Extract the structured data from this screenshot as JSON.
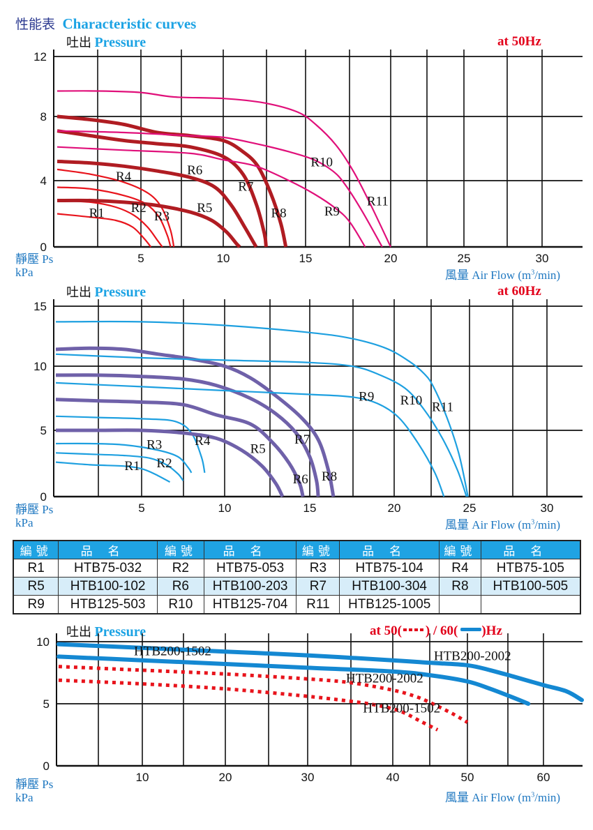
{
  "header": {
    "title_cn": "性能表",
    "title_en": "Characteristic curves"
  },
  "colors": {
    "title_cn": "#2b3990",
    "accent_blue": "#1ca3e4",
    "axis_label_blue": "#1f78c1",
    "freq_red": "#e2001a",
    "curve_red": "#e8141c",
    "curve_maroon": "#b01c22",
    "curve_magenta": "#e0107a",
    "curve_blue": "#1ea0e0",
    "curve_purple": "#6f61a9",
    "curve_blue_thick": "#1488d2",
    "curve_red_dotted": "#e8141c"
  },
  "labels": {
    "pressure_cn": "吐出",
    "pressure_en": "Pressure",
    "static_pressure": "靜壓 Ps",
    "unit": "kPa",
    "airflow": "風量 Air Flow (m",
    "airflow_sup": "3",
    "airflow_end": "/min)"
  },
  "chart_data": [
    {
      "type": "line",
      "title": "at  50Hz",
      "xlabel": "風量 Air Flow (m3/min)",
      "ylabel": "靜壓 Ps kPa",
      "xlim": [
        0,
        32
      ],
      "ylim": [
        0,
        12
      ],
      "xticks": [
        5,
        10,
        15,
        20,
        25,
        30
      ],
      "yticks": [
        0,
        4,
        8,
        12
      ],
      "grid": true,
      "series": [
        {
          "name": "R1",
          "color": "curve_red",
          "width": 2,
          "label_at": [
            1.9,
            1.8
          ],
          "x": [
            0,
            2,
            3.5,
            4.5,
            5.2,
            5.6
          ],
          "y": [
            2.0,
            1.8,
            1.6,
            1.2,
            0.5,
            0
          ]
        },
        {
          "name": "R2",
          "color": "curve_red",
          "width": 2,
          "label_at": [
            4.4,
            2.1
          ],
          "x": [
            0,
            2,
            3.5,
            4.6,
            5.4,
            6.0,
            6.3
          ],
          "y": [
            2.8,
            2.7,
            2.4,
            1.9,
            1.2,
            0.4,
            0
          ]
        },
        {
          "name": "R3",
          "color": "curve_red",
          "width": 2,
          "label_at": [
            5.8,
            1.6
          ],
          "x": [
            0,
            2,
            4,
            5.3,
            6.1,
            6.6,
            6.8
          ],
          "y": [
            3.6,
            3.5,
            3.1,
            2.6,
            1.8,
            0.7,
            0
          ]
        },
        {
          "name": "R4",
          "color": "curve_red",
          "width": 2,
          "label_at": [
            3.5,
            4.0
          ],
          "x": [
            0,
            2,
            4,
            5.5,
            6.3,
            6.8,
            7.0
          ],
          "y": [
            4.7,
            4.4,
            3.9,
            3.2,
            2.3,
            1.0,
            0
          ]
        },
        {
          "name": "R5",
          "color": "curve_maroon",
          "width": 4,
          "label_at": [
            8.4,
            2.1
          ],
          "x": [
            0,
            2,
            4,
            6,
            8,
            9.3,
            10.2,
            10.8,
            11.0
          ],
          "y": [
            2.8,
            2.8,
            2.7,
            2.5,
            2.1,
            1.6,
            0.9,
            0.2,
            0
          ]
        },
        {
          "name": "R6",
          "color": "curve_maroon",
          "width": 4,
          "label_at": [
            7.8,
            4.4
          ],
          "x": [
            0,
            2,
            4,
            6,
            8,
            9.5,
            10.5,
            11.3,
            12.0
          ],
          "y": [
            5.2,
            5.1,
            4.9,
            4.6,
            4.2,
            3.6,
            2.5,
            1.2,
            0
          ]
        },
        {
          "name": "R7",
          "color": "curve_maroon",
          "width": 4,
          "label_at": [
            10.9,
            3.4
          ],
          "x": [
            0,
            2,
            4,
            6,
            8,
            10,
            11.2,
            12.0,
            12.5,
            12.6
          ],
          "y": [
            7.1,
            6.8,
            6.5,
            6.3,
            6.1,
            5.5,
            4.4,
            2.6,
            0.8,
            0
          ]
        },
        {
          "name": "R8",
          "color": "curve_maroon",
          "width": 4,
          "label_at": [
            12.9,
            1.8
          ],
          "x": [
            0,
            2,
            4,
            6,
            8,
            10,
            11.2,
            12.1,
            12.9,
            13.5,
            13.8
          ],
          "y": [
            8.0,
            7.8,
            7.5,
            7.0,
            6.8,
            6.5,
            5.8,
            4.9,
            3.2,
            1.4,
            0
          ]
        },
        {
          "name": "R9",
          "color": "curve_magenta",
          "width": 2,
          "label_at": [
            16.1,
            1.9
          ],
          "x": [
            0,
            4,
            8,
            10,
            12,
            14,
            15.5,
            16.8,
            17.6,
            18.5
          ],
          "y": [
            6.1,
            5.9,
            5.7,
            5.3,
            4.9,
            4.0,
            3.2,
            2.3,
            1.5,
            0
          ]
        },
        {
          "name": "R10",
          "color": "curve_magenta",
          "width": 2,
          "label_at": [
            15.3,
            4.9
          ],
          "x": [
            0,
            4,
            8,
            10,
            12,
            14,
            15.5,
            16.6,
            17.3,
            18.3,
            19.5
          ],
          "y": [
            7.1,
            7.0,
            6.8,
            6.7,
            6.3,
            5.8,
            5.3,
            4.6,
            3.8,
            2.2,
            0
          ]
        },
        {
          "name": "R11",
          "color": "curve_magenta",
          "width": 2,
          "label_at": [
            18.6,
            2.5
          ],
          "x": [
            0,
            2.5,
            5,
            7,
            10,
            12.5,
            14.5,
            15.6,
            16.8,
            17.8,
            18.8,
            20.0
          ],
          "y": [
            9.7,
            9.7,
            9.6,
            9.3,
            9.2,
            8.9,
            8.3,
            7.5,
            6.2,
            4.6,
            2.6,
            0
          ]
        }
      ]
    },
    {
      "type": "line",
      "title": "at  60Hz",
      "xlabel": "風量 Air Flow (m3/min)",
      "ylabel": "靜壓 Ps kPa",
      "xlim": [
        0,
        32
      ],
      "ylim": [
        0,
        15
      ],
      "xticks": [
        5,
        10,
        15,
        20,
        25,
        30
      ],
      "yticks": [
        0,
        5,
        10,
        15
      ],
      "grid": true,
      "series": [
        {
          "name": "R1",
          "color": "curve_blue",
          "width": 2,
          "label_at": [
            4.0,
            2.0
          ],
          "x": [
            0,
            2,
            4,
            5,
            5.8,
            6.7
          ],
          "y": [
            2.6,
            2.4,
            2.3,
            2.1,
            1.7,
            1.1
          ]
        },
        {
          "name": "R2",
          "color": "curve_blue",
          "width": 2,
          "label_at": [
            5.9,
            2.2
          ],
          "x": [
            0,
            2,
            4,
            5.5,
            6.5,
            7.2,
            7.5
          ],
          "y": [
            3.3,
            3.2,
            3.1,
            2.9,
            2.4,
            1.7,
            1.2
          ]
        },
        {
          "name": "R3",
          "color": "curve_blue",
          "width": 2,
          "label_at": [
            5.3,
            3.6
          ],
          "x": [
            0,
            2,
            4,
            6,
            7.2,
            7.8,
            8.0
          ],
          "y": [
            4.0,
            4.0,
            3.9,
            3.5,
            3.0,
            2.2,
            1.8
          ]
        },
        {
          "name": "R4",
          "color": "curve_blue",
          "width": 2,
          "label_at": [
            8.2,
            3.9
          ],
          "x": [
            0,
            2.5,
            5,
            7,
            8.0,
            8.6,
            8.8
          ],
          "y": [
            6.1,
            6.0,
            5.9,
            5.7,
            4.8,
            3.0,
            1.8
          ]
        },
        {
          "name": "R5",
          "color": "curve_purple",
          "width": 4,
          "label_at": [
            11.5,
            3.3
          ],
          "x": [
            0,
            2.5,
            5,
            7.5,
            9.5,
            11,
            12.2,
            13.0,
            13.4
          ],
          "y": [
            5.0,
            5.0,
            5.0,
            4.8,
            4.4,
            3.5,
            2.3,
            1.0,
            0
          ]
        },
        {
          "name": "R6",
          "color": "curve_purple",
          "width": 4,
          "label_at": [
            14.0,
            1.0
          ],
          "x": [
            0,
            2.5,
            5,
            7.5,
            9.5,
            11.5,
            12.8,
            13.8,
            14.4,
            14.6
          ],
          "y": [
            7.4,
            7.3,
            7.2,
            7.0,
            6.2,
            5.5,
            4.1,
            2.5,
            1.0,
            0
          ]
        },
        {
          "name": "R7",
          "color": "curve_purple",
          "width": 4,
          "label_at": [
            14.1,
            4.0
          ],
          "x": [
            0,
            2.5,
            5,
            7.5,
            9.5,
            11.5,
            13.0,
            14.2,
            15.0,
            15.4,
            15.5
          ],
          "y": [
            9.3,
            9.3,
            9.2,
            9.0,
            8.5,
            7.5,
            6.3,
            4.8,
            3.0,
            1.2,
            0
          ]
        },
        {
          "name": "R8",
          "color": "curve_purple",
          "width": 4,
          "label_at": [
            15.7,
            1.2
          ],
          "x": [
            0,
            2,
            4,
            6,
            8,
            10,
            11.5,
            13,
            14.5,
            15.5,
            16.1,
            16.4
          ],
          "y": [
            11.4,
            11.5,
            11.4,
            11.0,
            10.6,
            10.0,
            9.1,
            7.7,
            6.0,
            4.3,
            2.0,
            0
          ]
        },
        {
          "name": "R9",
          "color": "curve_blue",
          "width": 2,
          "label_at": [
            17.9,
            7.3
          ],
          "x": [
            0,
            5,
            10,
            15,
            17.5,
            19,
            20.3,
            21.6,
            22.7,
            23.3
          ],
          "y": [
            8.7,
            8.4,
            8.1,
            7.8,
            7.6,
            7.1,
            6.0,
            4.0,
            1.8,
            0
          ]
        },
        {
          "name": "R10",
          "color": "curve_blue",
          "width": 2,
          "label_at": [
            20.4,
            7.0
          ],
          "x": [
            0,
            5,
            10,
            15,
            17.5,
            19,
            20.7,
            22,
            23.2,
            24.2,
            24.8
          ],
          "y": [
            11.0,
            10.7,
            10.5,
            10.3,
            10.0,
            9.4,
            8.3,
            6.6,
            4.4,
            2.0,
            0
          ]
        },
        {
          "name": "R11",
          "color": "curve_blue",
          "width": 2,
          "label_at": [
            22.5,
            6.5
          ],
          "x": [
            0,
            5,
            10,
            15,
            17.5,
            19.5,
            21,
            22,
            22.6,
            23.5,
            24.3,
            24.9
          ],
          "y": [
            13.7,
            13.7,
            13.4,
            12.8,
            12.3,
            11.5,
            10.4,
            9.4,
            8.4,
            6.0,
            3.2,
            0
          ]
        }
      ]
    },
    {
      "type": "line",
      "title": "at  50(",
      "title_mid": ") / 60(",
      "title_end": ")Hz",
      "xlabel": "風量 Air Flow (m3/min)",
      "ylabel": "靜壓 Ps kPa",
      "xlim": [
        0,
        65
      ],
      "ylim": [
        0,
        10
      ],
      "xticks": [
        10,
        20,
        30,
        40,
        50,
        60
      ],
      "yticks": [
        0,
        5,
        10
      ],
      "grid": true,
      "series": [
        {
          "name": "HTB200-2002",
          "freq": "60Hz",
          "style": "solid",
          "color": "curve_blue_thick",
          "label_at": [
            45.5,
            8.5
          ],
          "x": [
            0,
            10,
            20,
            30,
            40,
            45,
            50,
            53,
            56,
            60,
            63,
            65
          ],
          "y": [
            9.8,
            9.5,
            9.2,
            8.9,
            8.5,
            8.3,
            8.1,
            7.7,
            7.2,
            6.5,
            6.0,
            5.3
          ]
        },
        {
          "name": "HTB200-1502",
          "freq": "60Hz",
          "style": "solid",
          "color": "curve_blue_thick",
          "label_at": [
            9.0,
            8.9
          ],
          "x": [
            0,
            10,
            20,
            30,
            40,
            45,
            50,
            53,
            56,
            58
          ],
          "y": [
            8.8,
            8.5,
            8.2,
            7.9,
            7.6,
            7.3,
            6.8,
            6.2,
            5.5,
            5.0
          ]
        },
        {
          "name": "HTB200-2002",
          "freq": "50Hz",
          "style": "dotted",
          "color": "curve_red_dotted",
          "label_at": [
            34.5,
            6.7
          ],
          "x": [
            0,
            10,
            20,
            30,
            35,
            40,
            43,
            45,
            48,
            50
          ],
          "y": [
            8.0,
            7.7,
            7.4,
            7.0,
            6.7,
            6.1,
            5.6,
            5.1,
            4.2,
            3.5
          ]
        },
        {
          "name": "HTB200-1502",
          "freq": "50Hz",
          "style": "dotted",
          "color": "curve_red_dotted",
          "label_at": [
            36.5,
            4.3
          ],
          "x": [
            0,
            10,
            20,
            30,
            35,
            38,
            41,
            44,
            46
          ],
          "y": [
            6.9,
            6.6,
            6.2,
            5.6,
            5.2,
            4.9,
            4.4,
            3.5,
            2.9
          ]
        }
      ]
    }
  ],
  "table": {
    "headers": [
      "編號",
      "品名",
      "編號",
      "品名",
      "編號",
      "品名",
      "編號",
      "品名"
    ],
    "rows": [
      [
        "R1",
        "HTB75-032",
        "R2",
        "HTB75-053",
        "R3",
        "HTB75-104",
        "R4",
        "HTB75-105"
      ],
      [
        "R5",
        "HTB100-102",
        "R6",
        "HTB100-203",
        "R7",
        "HTB100-304",
        "R8",
        "HTB100-505"
      ],
      [
        "R9",
        "HTB125-503",
        "R10",
        "HTB125-704",
        "R11",
        "HTB125-1005",
        "",
        ""
      ]
    ]
  }
}
